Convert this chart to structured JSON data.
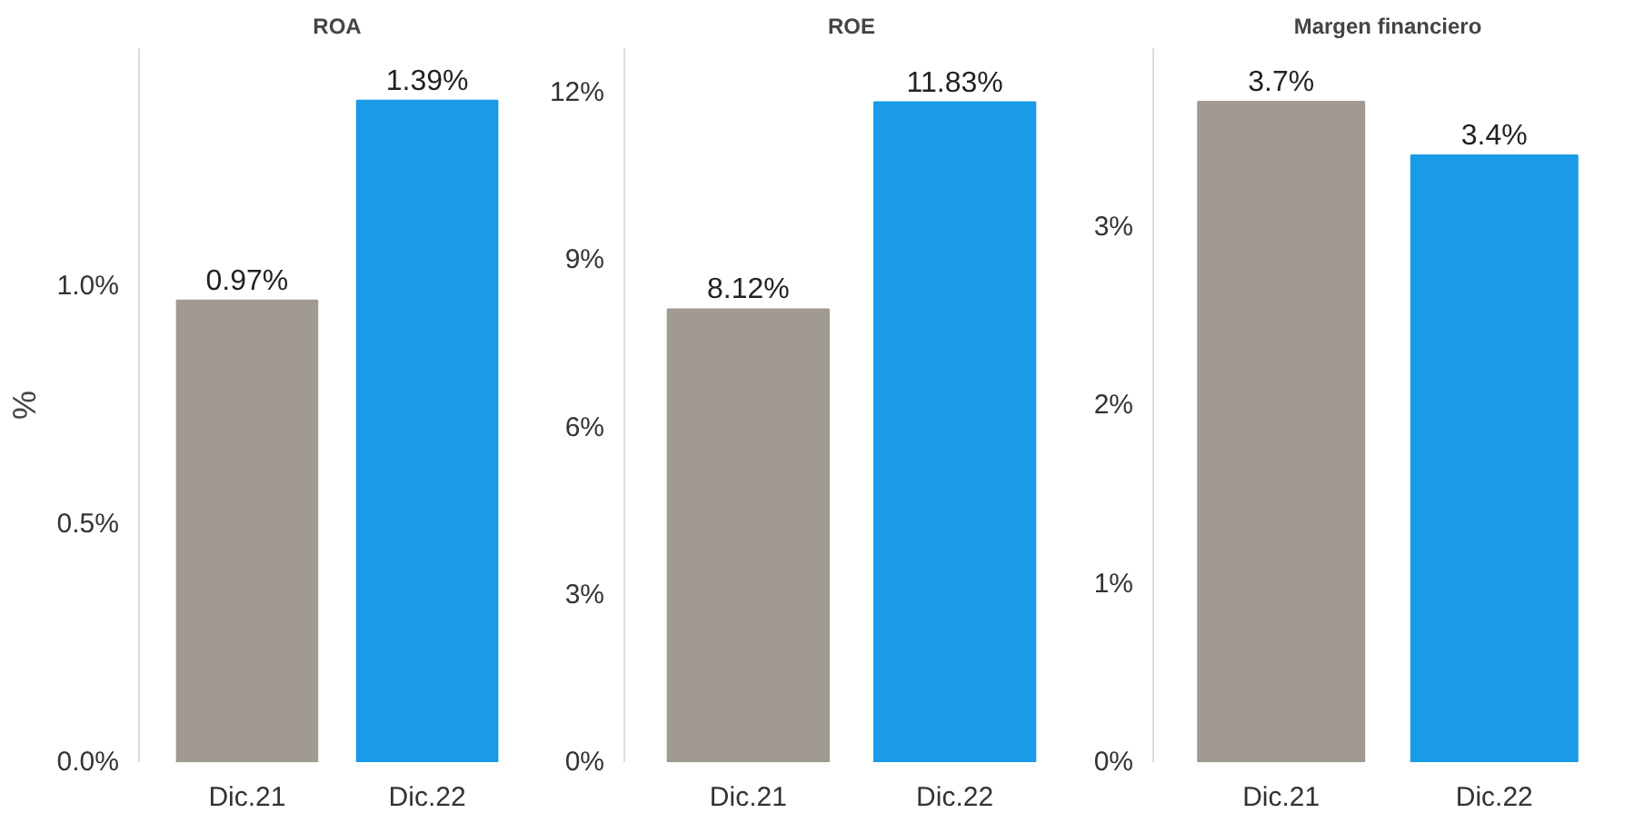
{
  "chart_data": [
    {
      "type": "bar",
      "title": "ROA",
      "ylabel": "%",
      "categories": [
        "Dic.21",
        "Dic.22"
      ],
      "values": [
        0.97,
        1.39
      ],
      "colors": [
        "#a09a91",
        "#1a9be8"
      ],
      "value_labels": [
        "0.97%",
        "1.39%"
      ],
      "ylim": [
        0,
        1.5
      ],
      "yticks": [
        {
          "value": 0,
          "label": "0.0%"
        },
        {
          "value": 0.5,
          "label": "0.5%"
        },
        {
          "value": 1.0,
          "label": "1.0%"
        }
      ],
      "grid": false,
      "legend": false
    },
    {
      "type": "bar",
      "title": "ROE",
      "categories": [
        "Dic.21",
        "Dic.22"
      ],
      "values": [
        8.12,
        11.83
      ],
      "colors": [
        "#a09a91",
        "#1a9be8"
      ],
      "value_labels": [
        "8.12%",
        "11.83%"
      ],
      "ylim": [
        0,
        12.8
      ],
      "yticks": [
        {
          "value": 0,
          "label": "0%"
        },
        {
          "value": 3,
          "label": "3%"
        },
        {
          "value": 6,
          "label": "6%"
        },
        {
          "value": 9,
          "label": "9%"
        },
        {
          "value": 12,
          "label": "12%"
        }
      ],
      "grid": false,
      "legend": false
    },
    {
      "type": "bar",
      "title": "Margen financiero",
      "categories": [
        "Dic.21",
        "Dic.22"
      ],
      "values": [
        3.7,
        3.4
      ],
      "colors": [
        "#a09a91",
        "#1a9be8"
      ],
      "value_labels": [
        "3.7%",
        "3.4%"
      ],
      "ylim": [
        0,
        4
      ],
      "yticks": [
        {
          "value": 0,
          "label": "0%"
        },
        {
          "value": 1,
          "label": "1%"
        },
        {
          "value": 2,
          "label": "2%"
        },
        {
          "value": 3,
          "label": "3%"
        }
      ],
      "grid": false,
      "legend": false
    }
  ]
}
